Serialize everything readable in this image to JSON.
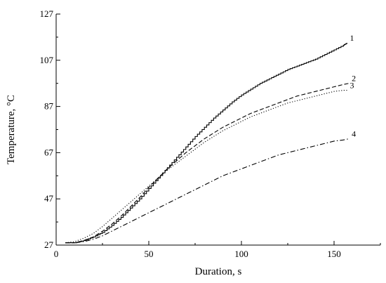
{
  "chart_data": {
    "type": "line",
    "xlabel": "Duration, s",
    "ylabel": "Temperature, °C",
    "xlim": [
      0,
      175
    ],
    "ylim": [
      27,
      127
    ],
    "x_ticks": [
      0,
      50,
      100,
      150
    ],
    "y_ticks": [
      27,
      47,
      67,
      87,
      107,
      127
    ],
    "grid": false,
    "series": [
      {
        "name": "1",
        "dash": "solid",
        "x": [
          5,
          10,
          15,
          20,
          25,
          30,
          35,
          40,
          45,
          50,
          55,
          60,
          65,
          70,
          75,
          80,
          85,
          90,
          95,
          100,
          105,
          110,
          115,
          120,
          125,
          130,
          135,
          140,
          145,
          150,
          155,
          157
        ],
        "y": [
          28,
          28,
          29,
          30.5,
          32.5,
          35.5,
          39,
          43,
          47,
          51.5,
          56,
          60.5,
          65,
          69.5,
          74,
          78,
          82,
          85.5,
          89,
          92,
          94.5,
          97,
          99,
          101,
          103,
          104.5,
          106,
          107.5,
          109.5,
          111.5,
          113.5,
          114.5
        ]
      },
      {
        "name": "2",
        "dash": "dashed",
        "x": [
          5,
          10,
          15,
          20,
          25,
          30,
          35,
          40,
          45,
          50,
          55,
          60,
          65,
          70,
          75,
          80,
          85,
          90,
          95,
          100,
          105,
          110,
          115,
          120,
          125,
          130,
          135,
          140,
          145,
          150,
          155,
          158
        ],
        "y": [
          28,
          28,
          29,
          30.5,
          33,
          36,
          39.5,
          43.5,
          47.5,
          52,
          56,
          60,
          63.5,
          67,
          70,
          73,
          75.5,
          78,
          80,
          82,
          84,
          85.5,
          87,
          88.5,
          90,
          91.5,
          92.5,
          93.5,
          94.5,
          95.5,
          96.5,
          97
        ]
      },
      {
        "name": "3",
        "dash": "dotted",
        "x": [
          5,
          10,
          15,
          20,
          25,
          30,
          35,
          40,
          45,
          50,
          55,
          60,
          65,
          70,
          75,
          80,
          85,
          90,
          95,
          100,
          105,
          110,
          115,
          120,
          125,
          130,
          135,
          140,
          145,
          150,
          155,
          157
        ],
        "y": [
          28,
          28.5,
          30,
          32,
          35,
          38.5,
          42,
          45.5,
          49,
          52.5,
          56,
          59.5,
          62.5,
          65.5,
          68.5,
          71.5,
          74,
          76.5,
          78.5,
          80.5,
          82.5,
          84,
          85.5,
          87,
          88.5,
          89.5,
          90.5,
          91.5,
          92.5,
          93.5,
          94,
          94
        ]
      },
      {
        "name": "4",
        "dash": "dashdot",
        "x": [
          5,
          10,
          15,
          20,
          25,
          30,
          35,
          40,
          45,
          50,
          55,
          60,
          65,
          70,
          75,
          80,
          85,
          90,
          95,
          100,
          105,
          110,
          115,
          120,
          125,
          130,
          135,
          140,
          145,
          150,
          155,
          158
        ],
        "y": [
          28,
          28,
          28.5,
          29.5,
          31,
          33,
          35,
          37,
          39,
          41,
          43,
          45,
          47,
          49,
          51,
          53,
          55,
          57,
          58.5,
          60,
          61.5,
          63,
          64.5,
          66,
          67,
          68,
          69,
          70,
          71,
          72,
          72.5,
          73
        ]
      }
    ]
  }
}
